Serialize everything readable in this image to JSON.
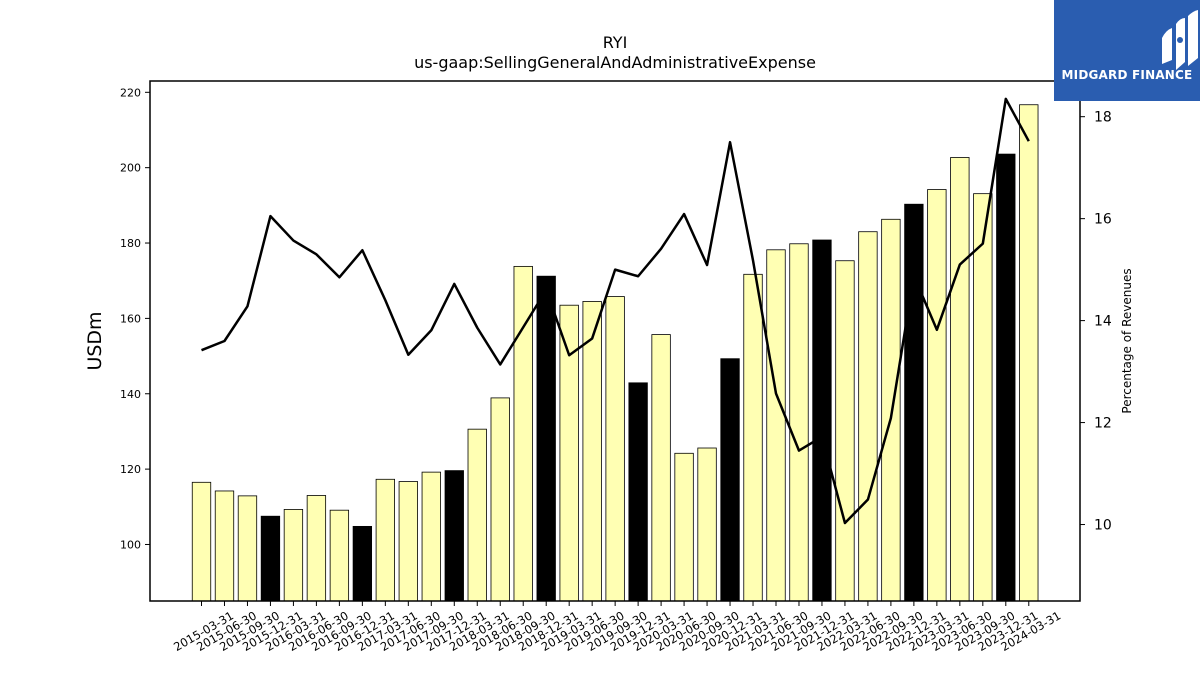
{
  "logo": {
    "text": "MIDGARD FINANCE",
    "color": "#2a5db0"
  },
  "chart_data": {
    "type": "bar",
    "title": "RYI",
    "subtitle": "us-gaap:SellingGeneralAndAdministrativeExpense",
    "ylabel": "USDm",
    "y2label": "Percentage of Revenues",
    "ylim": [
      85,
      223
    ],
    "y2lim": [
      8.5,
      18.7
    ],
    "yticks": [
      100,
      120,
      140,
      160,
      180,
      200,
      220
    ],
    "y2ticks": [
      10,
      12,
      14,
      16,
      18
    ],
    "categories": [
      "2015-03-31",
      "2015-06-30",
      "2015-09-30",
      "2015-12-31",
      "2016-03-31",
      "2016-06-30",
      "2016-09-30",
      "2016-12-31",
      "2017-03-31",
      "2017-06-30",
      "2017-09-30",
      "2017-12-31",
      "2018-03-31",
      "2018-06-30",
      "2018-09-30",
      "2018-12-31",
      "2019-03-31",
      "2019-06-30",
      "2019-09-30",
      "2019-12-31",
      "2020-03-31",
      "2020-06-30",
      "2020-09-30",
      "2020-12-31",
      "2021-03-31",
      "2021-06-30",
      "2021-09-30",
      "2021-12-31",
      "2022-03-31",
      "2022-06-30",
      "2022-09-30",
      "2022-12-31",
      "2023-03-31",
      "2023-06-30",
      "2023-09-30",
      "2023-12-31",
      "2024-03-31"
    ],
    "series": [
      {
        "kind": "bar",
        "values": [
          116.5,
          114.2,
          112.9,
          107.5,
          109.3,
          113.0,
          109.1,
          104.8,
          117.3,
          116.7,
          119.2,
          119.6,
          130.6,
          138.9,
          173.8,
          171.2,
          163.5,
          164.5,
          165.8,
          142.9,
          155.7,
          124.2,
          125.6,
          149.3,
          171.7,
          178.2,
          179.8,
          180.8,
          175.3,
          183.0,
          186.3,
          190.3,
          194.2,
          202.7,
          193.1,
          203.6,
          216.7
        ],
        "highlight": [
          false,
          false,
          false,
          true,
          false,
          false,
          false,
          true,
          false,
          false,
          false,
          true,
          false,
          false,
          false,
          true,
          false,
          false,
          false,
          true,
          false,
          false,
          false,
          true,
          false,
          false,
          false,
          true,
          false,
          false,
          false,
          true,
          false,
          false,
          false,
          true,
          false
        ],
        "colors": {
          "normal": "#ffffb3",
          "highlight": "#000000",
          "edge": "#000000"
        }
      },
      {
        "kind": "line",
        "axis": "right",
        "color": "#000000",
        "values": [
          13.42,
          13.6,
          14.28,
          16.05,
          15.57,
          15.3,
          14.85,
          15.38,
          14.4,
          13.33,
          13.81,
          14.72,
          13.86,
          13.14,
          13.87,
          14.6,
          13.32,
          13.65,
          15.0,
          14.87,
          15.41,
          16.09,
          15.09,
          17.5,
          15.18,
          12.57,
          11.45,
          11.72,
          10.03,
          10.49,
          12.09,
          14.88,
          13.82,
          15.1,
          15.51,
          18.35,
          17.52
        ]
      }
    ],
    "grid": false
  }
}
